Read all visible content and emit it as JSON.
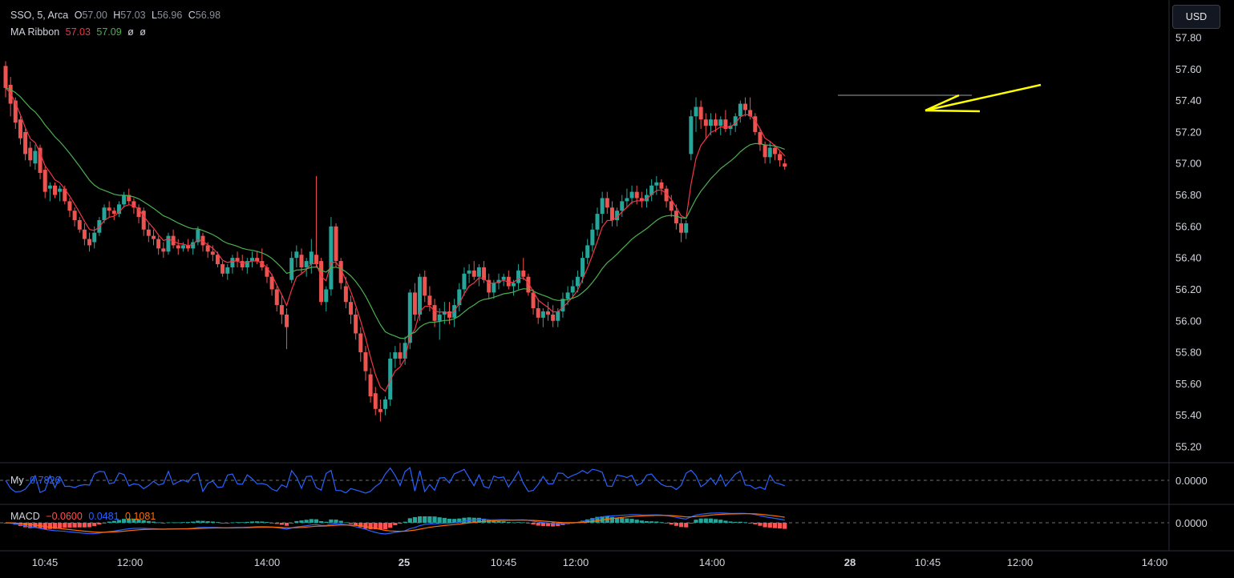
{
  "legend": {
    "symbol": "SSO, 5, Arca",
    "open_label": "O",
    "open": "57.00",
    "high_label": "H",
    "high": "57.03",
    "low_label": "L",
    "low": "56.96",
    "close_label": "C",
    "close": "56.98"
  },
  "ma_ribbon": {
    "label": "MA Ribbon",
    "v1": "57.03",
    "v2": "57.09",
    "v3": "ø",
    "v4": "ø"
  },
  "my_indicator": {
    "label": "My",
    "value": "0.7826",
    "axis_value": "0.0000"
  },
  "macd_indicator": {
    "label": "MACD",
    "v1": "−0.0600",
    "v2": "0.0481",
    "v3": "0.1081",
    "axis_value": "0.0000"
  },
  "currency_button": "USD",
  "colors": {
    "up": "#26a69a",
    "down": "#ef5350",
    "ma_fast": "#f23645",
    "ma_slow": "#4caf50",
    "my_line": "#2962ff",
    "macd_line": "#2962ff",
    "signal_line": "#ff6d00",
    "hist_up": "#26a69a",
    "hist_down": "#ff5252",
    "annotation": "#ffff00"
  },
  "chart_data": {
    "type": "candlestick",
    "price_axis_ticks": [
      "57.80",
      "57.60",
      "57.40",
      "57.20",
      "57.00",
      "56.80",
      "56.60",
      "56.40",
      "56.20",
      "56.00",
      "55.80",
      "55.60",
      "55.40",
      "55.20"
    ],
    "time_axis_ticks": [
      "10:45",
      "12:00",
      "14:00",
      "25",
      "10:45",
      "12:00",
      "14:00",
      "28",
      "10:45",
      "12:00",
      "14:00"
    ],
    "ylim": [
      55.1,
      57.9
    ],
    "ohlc": [
      [
        57.62,
        57.65,
        57.42,
        57.48
      ],
      [
        57.5,
        57.55,
        57.3,
        57.38
      ],
      [
        57.4,
        57.42,
        57.22,
        57.26
      ],
      [
        57.28,
        57.3,
        57.12,
        57.16
      ],
      [
        57.2,
        57.22,
        57.02,
        57.06
      ],
      [
        57.1,
        57.14,
        56.98,
        57.02
      ],
      [
        57.0,
        57.12,
        56.96,
        57.08
      ],
      [
        57.1,
        57.12,
        56.9,
        56.94
      ],
      [
        56.96,
        56.98,
        56.78,
        56.82
      ],
      [
        56.84,
        56.88,
        56.76,
        56.86
      ],
      [
        56.86,
        56.88,
        56.78,
        56.8
      ],
      [
        56.82,
        56.86,
        56.76,
        56.84
      ],
      [
        56.84,
        56.86,
        56.74,
        56.76
      ],
      [
        56.76,
        56.78,
        56.66,
        56.7
      ],
      [
        56.7,
        56.72,
        56.6,
        56.64
      ],
      [
        56.64,
        56.66,
        56.56,
        56.58
      ],
      [
        56.58,
        56.62,
        56.48,
        56.52
      ],
      [
        56.52,
        56.56,
        56.44,
        56.48
      ],
      [
        56.5,
        56.6,
        56.46,
        56.56
      ],
      [
        56.56,
        56.66,
        56.54,
        56.64
      ],
      [
        56.64,
        56.74,
        56.62,
        56.72
      ],
      [
        56.72,
        56.76,
        56.66,
        56.7
      ],
      [
        56.7,
        56.72,
        56.64,
        56.68
      ],
      [
        56.68,
        56.76,
        56.66,
        56.74
      ],
      [
        56.74,
        56.82,
        56.72,
        56.8
      ],
      [
        56.8,
        56.84,
        56.74,
        56.76
      ],
      [
        56.76,
        56.78,
        56.68,
        56.72
      ],
      [
        56.72,
        56.74,
        56.62,
        56.66
      ],
      [
        56.7,
        56.72,
        56.54,
        56.58
      ],
      [
        56.58,
        56.62,
        56.5,
        56.54
      ],
      [
        56.54,
        56.58,
        56.48,
        56.52
      ],
      [
        56.52,
        56.54,
        56.42,
        56.46
      ],
      [
        56.46,
        56.5,
        56.4,
        56.44
      ],
      [
        56.44,
        56.56,
        56.42,
        56.54
      ],
      [
        56.54,
        56.58,
        56.46,
        56.48
      ],
      [
        56.48,
        56.52,
        56.42,
        56.46
      ],
      [
        56.46,
        56.5,
        56.44,
        56.48
      ],
      [
        56.48,
        56.52,
        56.44,
        56.46
      ],
      [
        56.46,
        56.52,
        56.42,
        56.5
      ],
      [
        56.5,
        56.6,
        56.48,
        56.58
      ],
      [
        56.54,
        56.56,
        56.44,
        56.48
      ],
      [
        56.48,
        56.5,
        56.4,
        56.44
      ],
      [
        56.44,
        56.48,
        56.38,
        56.42
      ],
      [
        56.42,
        56.44,
        56.34,
        56.36
      ],
      [
        56.36,
        56.38,
        56.28,
        56.3
      ],
      [
        56.3,
        56.36,
        56.26,
        56.34
      ],
      [
        56.34,
        56.42,
        56.3,
        56.4
      ],
      [
        56.4,
        56.44,
        56.34,
        56.38
      ],
      [
        56.38,
        56.42,
        56.32,
        56.34
      ],
      [
        56.34,
        56.4,
        56.3,
        56.38
      ],
      [
        56.38,
        56.44,
        56.34,
        56.4
      ],
      [
        56.4,
        56.44,
        56.36,
        56.38
      ],
      [
        56.38,
        56.46,
        56.32,
        56.34
      ],
      [
        56.34,
        56.36,
        56.24,
        56.28
      ],
      [
        56.28,
        56.3,
        56.16,
        56.2
      ],
      [
        56.2,
        56.22,
        56.06,
        56.1
      ],
      [
        56.1,
        56.16,
        55.98,
        56.04
      ],
      [
        56.04,
        56.08,
        55.82,
        55.96
      ],
      [
        56.26,
        56.44,
        56.24,
        56.4
      ],
      [
        56.4,
        56.48,
        56.34,
        56.44
      ],
      [
        56.42,
        56.46,
        56.3,
        56.34
      ],
      [
        56.34,
        56.4,
        56.28,
        56.38
      ],
      [
        56.36,
        56.52,
        56.3,
        56.44
      ],
      [
        56.42,
        56.92,
        56.34,
        56.36
      ],
      [
        56.38,
        56.4,
        56.1,
        56.12
      ],
      [
        56.12,
        56.22,
        56.06,
        56.2
      ],
      [
        56.2,
        56.66,
        56.16,
        56.6
      ],
      [
        56.6,
        56.62,
        56.34,
        56.38
      ],
      [
        56.38,
        56.4,
        56.2,
        56.24
      ],
      [
        56.22,
        56.28,
        56.08,
        56.12
      ],
      [
        56.12,
        56.16,
        55.98,
        56.04
      ],
      [
        56.04,
        56.08,
        55.88,
        55.92
      ],
      [
        55.92,
        55.96,
        55.74,
        55.8
      ],
      [
        55.8,
        55.84,
        55.62,
        55.68
      ],
      [
        55.66,
        55.7,
        55.48,
        55.52
      ],
      [
        55.54,
        55.58,
        55.4,
        55.44
      ],
      [
        55.44,
        55.5,
        55.36,
        55.42
      ],
      [
        55.44,
        55.52,
        55.4,
        55.5
      ],
      [
        55.5,
        55.8,
        55.46,
        55.76
      ],
      [
        55.76,
        55.84,
        55.7,
        55.8
      ],
      [
        55.8,
        55.86,
        55.72,
        55.76
      ],
      [
        55.76,
        55.9,
        55.72,
        55.86
      ],
      [
        55.86,
        56.2,
        55.82,
        56.18
      ],
      [
        56.18,
        56.24,
        56.0,
        56.04
      ],
      [
        56.04,
        56.3,
        56.0,
        56.28
      ],
      [
        56.28,
        56.32,
        56.12,
        56.16
      ],
      [
        56.16,
        56.22,
        56.06,
        56.1
      ],
      [
        56.1,
        56.14,
        55.96,
        56.0
      ],
      [
        56.0,
        56.08,
        55.88,
        56.04
      ],
      [
        56.04,
        56.12,
        55.98,
        56.06
      ],
      [
        56.06,
        56.12,
        55.98,
        56.02
      ],
      [
        56.02,
        56.14,
        55.96,
        56.1
      ],
      [
        56.1,
        56.24,
        56.06,
        56.2
      ],
      [
        56.2,
        56.34,
        56.16,
        56.3
      ],
      [
        56.3,
        56.36,
        56.24,
        56.32
      ],
      [
        56.32,
        56.38,
        56.26,
        56.28
      ],
      [
        56.28,
        56.36,
        56.22,
        56.34
      ],
      [
        56.34,
        56.38,
        56.24,
        56.26
      ],
      [
        56.26,
        56.3,
        56.14,
        56.18
      ],
      [
        56.18,
        56.26,
        56.14,
        56.24
      ],
      [
        56.24,
        56.3,
        56.2,
        56.26
      ],
      [
        56.26,
        56.3,
        56.22,
        56.28
      ],
      [
        56.28,
        56.32,
        56.2,
        56.22
      ],
      [
        56.22,
        56.26,
        56.16,
        56.24
      ],
      [
        56.24,
        56.36,
        56.2,
        56.32
      ],
      [
        56.32,
        56.4,
        56.26,
        56.28
      ],
      [
        56.28,
        56.3,
        56.16,
        56.18
      ],
      [
        56.18,
        56.2,
        56.04,
        56.08
      ],
      [
        56.08,
        56.14,
        55.98,
        56.02
      ],
      [
        56.02,
        56.08,
        55.96,
        56.06
      ],
      [
        56.06,
        56.12,
        56.0,
        56.04
      ],
      [
        56.04,
        56.1,
        55.96,
        56.0
      ],
      [
        56.0,
        56.08,
        55.96,
        56.06
      ],
      [
        56.06,
        56.18,
        56.02,
        56.14
      ],
      [
        56.14,
        56.22,
        56.1,
        56.18
      ],
      [
        56.18,
        56.26,
        56.14,
        56.22
      ],
      [
        56.22,
        56.32,
        56.18,
        56.28
      ],
      [
        56.28,
        56.44,
        56.24,
        56.4
      ],
      [
        56.4,
        56.52,
        56.36,
        56.48
      ],
      [
        56.48,
        56.62,
        56.44,
        56.58
      ],
      [
        56.58,
        56.72,
        56.54,
        56.68
      ],
      [
        56.68,
        56.82,
        56.62,
        56.78
      ],
      [
        56.78,
        56.82,
        56.68,
        56.72
      ],
      [
        56.72,
        56.76,
        56.6,
        56.64
      ],
      [
        56.64,
        56.72,
        56.6,
        56.7
      ],
      [
        56.7,
        56.8,
        56.66,
        56.76
      ],
      [
        56.76,
        56.84,
        56.72,
        56.78
      ],
      [
        56.78,
        56.86,
        56.74,
        56.82
      ],
      [
        56.82,
        56.86,
        56.74,
        56.78
      ],
      [
        56.78,
        56.82,
        56.72,
        56.76
      ],
      [
        56.76,
        56.84,
        56.72,
        56.8
      ],
      [
        56.8,
        56.9,
        56.76,
        56.86
      ],
      [
        56.86,
        56.92,
        56.8,
        56.88
      ],
      [
        56.88,
        56.9,
        56.8,
        56.84
      ],
      [
        56.84,
        56.86,
        56.72,
        56.76
      ],
      [
        56.76,
        56.8,
        56.66,
        56.7
      ],
      [
        56.7,
        56.74,
        56.58,
        56.62
      ],
      [
        56.62,
        56.66,
        56.5,
        56.56
      ],
      [
        56.56,
        56.64,
        56.52,
        56.62
      ],
      [
        57.06,
        57.34,
        57.02,
        57.3
      ],
      [
        57.3,
        57.42,
        57.2,
        57.36
      ],
      [
        57.36,
        57.4,
        57.22,
        57.28
      ],
      [
        57.28,
        57.32,
        57.16,
        57.24
      ],
      [
        57.24,
        57.32,
        57.18,
        57.28
      ],
      [
        57.28,
        57.32,
        57.2,
        57.24
      ],
      [
        57.24,
        57.3,
        57.18,
        57.28
      ],
      [
        57.28,
        57.34,
        57.2,
        57.22
      ],
      [
        57.22,
        57.26,
        57.18,
        57.24
      ],
      [
        57.24,
        57.32,
        57.2,
        57.3
      ],
      [
        57.3,
        57.4,
        57.26,
        57.38
      ],
      [
        57.38,
        57.42,
        57.3,
        57.34
      ],
      [
        57.34,
        57.42,
        57.28,
        57.3
      ],
      [
        57.3,
        57.32,
        57.18,
        57.2
      ],
      [
        57.2,
        57.22,
        57.08,
        57.12
      ],
      [
        57.12,
        57.14,
        57.0,
        57.04
      ],
      [
        57.04,
        57.14,
        57.0,
        57.1
      ],
      [
        57.1,
        57.12,
        57.02,
        57.06
      ],
      [
        57.06,
        57.08,
        56.98,
        57.02
      ],
      [
        57.0,
        57.03,
        56.96,
        56.98
      ]
    ]
  }
}
